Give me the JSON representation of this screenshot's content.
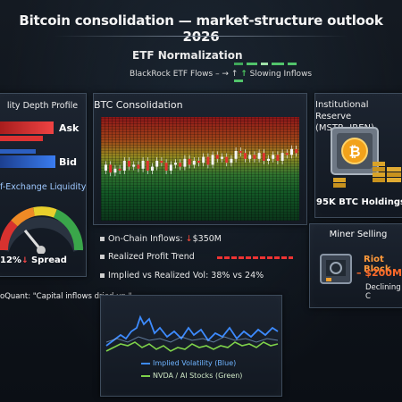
{
  "header": {
    "title": "Bitcoin consolidation — market-structure outlook 2026"
  },
  "etf": {
    "title": "ETF Normalization",
    "flows_label": "BlackRock ETF Flows",
    "flows_status": "Slowing Inflows",
    "flows_arrow": "↑"
  },
  "left_panel": {
    "title": "lity Depth Profile",
    "ask_label": "Ask",
    "bid_label": "Bid",
    "subtitle": "f-Exchange Liquidity",
    "spread_value": "12%",
    "spread_arrow": "↓",
    "spread_label": "Spread"
  },
  "center_panel": {
    "title": "BTC Consolidation"
  },
  "info": {
    "line1_label": "On-Chain Inflows:",
    "line1_arrow": "↓",
    "line1_value": "$350M",
    "line2_label": "Realized Profit Trend",
    "line3_label": "Implied vs Realized Vol:",
    "line3_value": "38% vs 24%"
  },
  "right_top": {
    "title": "Institutional Reserve",
    "subtitle": "(MSTR, IREN)",
    "holdings": "95K BTC Holdings"
  },
  "right_bottom": {
    "title": "Miner Selling",
    "line1": "Riot Block",
    "line2": "$200M",
    "line3": "Declining C"
  },
  "quote": {
    "text": "oQuant: \"Capital inflows dried up.\""
  },
  "bottom_chart": {
    "legend_blue": "Implied Volatility (Blue)",
    "legend_green": "NVDA / AI Stocks (Green)"
  },
  "colors": {
    "ask": "#e23a3a",
    "bid": "#2f6fd8",
    "accent_green": "#4ecb62",
    "accent_red": "#ff4b3a",
    "blue_line": "#3d8bff",
    "green_line": "#7fd34a"
  },
  "icons": {
    "etf_dashes": "dash-line-icon",
    "vault": "vault-icon",
    "coin": "bitcoin-coin-icon",
    "miner": "mining-rig-icon",
    "gauge": "gauge-icon"
  }
}
